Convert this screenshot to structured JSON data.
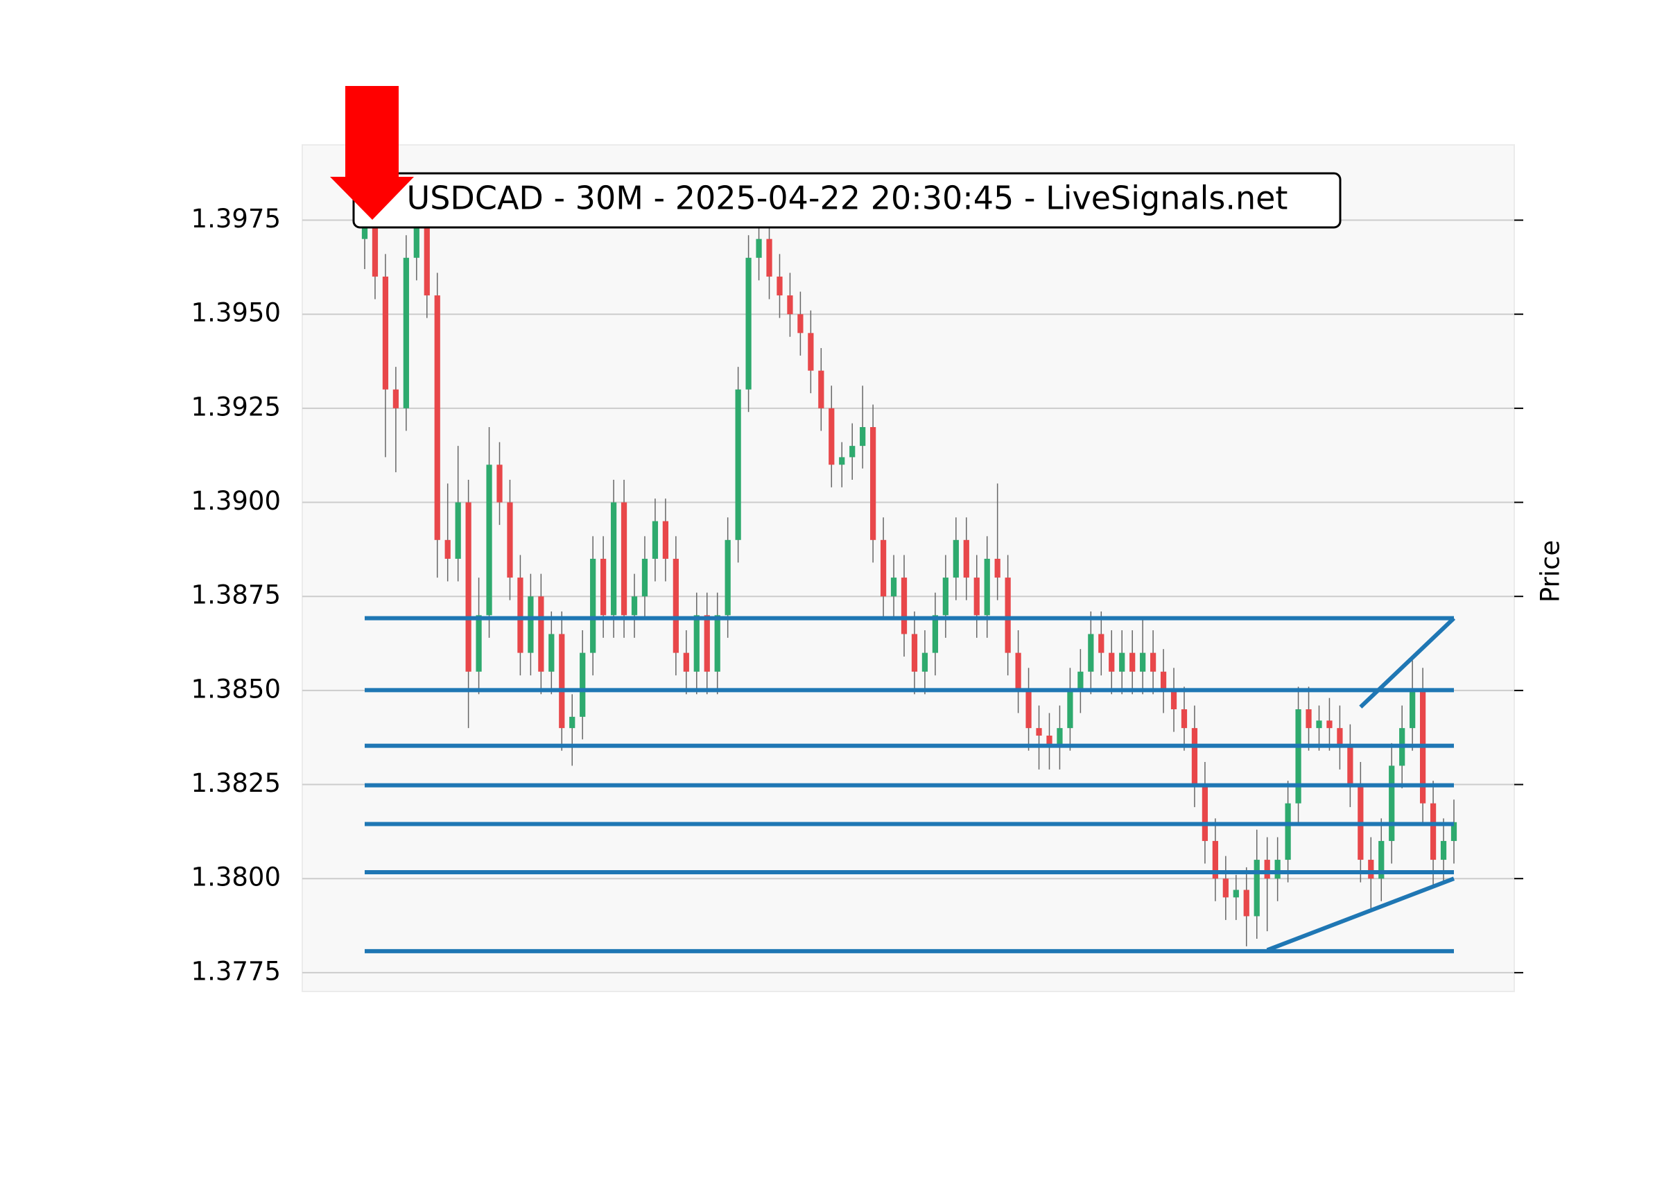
{
  "chart_data": {
    "type": "candlestick",
    "title": "USDCAD - 30M - 2025-04-22 20:30:45 - LiveSignals.net",
    "y_label": "Price",
    "up_color": "#2eaa6e",
    "down_color": "#e8474a",
    "ylim": [
      1.377,
      1.3995
    ],
    "yticks": [
      1.3775,
      {
        "value": 1.38,
        "label": "1.3800"
      },
      1.3825,
      {
        "value": 1.385,
        "label": "1.3850"
      },
      1.3875,
      {
        "value": 1.39,
        "label": "1.3900"
      },
      1.3925,
      {
        "value": 1.395,
        "label": "1.3950"
      },
      1.3975
    ],
    "grid": true,
    "open": [
      1.397,
      1.3975,
      1.396,
      1.393,
      1.3925,
      1.3965,
      1.3975,
      1.3955,
      1.389,
      1.3885,
      1.39,
      1.3855,
      1.387,
      1.391,
      1.39,
      1.388,
      1.386,
      1.3875,
      1.3855,
      1.3865,
      1.384,
      1.3843,
      1.386,
      1.3885,
      1.387,
      1.39,
      1.387,
      1.3875,
      1.3885,
      1.3895,
      1.3885,
      1.386,
      1.3855,
      1.387,
      1.3855,
      1.387,
      1.389,
      1.393,
      1.3965,
      1.397,
      1.396,
      1.3955,
      1.395,
      1.3945,
      1.3935,
      1.3925,
      1.391,
      1.3912,
      1.3915,
      1.392,
      1.389,
      1.3875,
      1.388,
      1.3865,
      1.3855,
      1.386,
      1.387,
      1.388,
      1.389,
      1.388,
      1.387,
      1.3885,
      1.388,
      1.386,
      1.385,
      1.384,
      1.3838,
      1.3835,
      1.384,
      1.385,
      1.3855,
      1.3865,
      1.386,
      1.3855,
      1.386,
      1.3855,
      1.386,
      1.3855,
      1.385,
      1.3845,
      1.384,
      1.3825,
      1.381,
      1.38,
      1.3795,
      1.3797,
      1.379,
      1.3805,
      1.38,
      1.3805,
      1.382,
      1.3845,
      1.384,
      1.3842,
      1.384,
      1.3835,
      1.3825,
      1.3805,
      1.38,
      1.381,
      1.383,
      1.384,
      1.385,
      1.382,
      1.3805,
      1.381
    ],
    "high": [
      1.398,
      1.3981,
      1.3966,
      1.3936,
      1.3971,
      1.3982,
      1.3981,
      1.3961,
      1.3905,
      1.3915,
      1.3906,
      1.388,
      1.392,
      1.3916,
      1.3906,
      1.3886,
      1.3881,
      1.3881,
      1.3871,
      1.3871,
      1.3849,
      1.3866,
      1.3891,
      1.3891,
      1.3906,
      1.3906,
      1.3881,
      1.3891,
      1.3901,
      1.3901,
      1.3891,
      1.3866,
      1.3876,
      1.3876,
      1.3876,
      1.3896,
      1.3936,
      1.3971,
      1.3976,
      1.3976,
      1.3966,
      1.3961,
      1.3956,
      1.3951,
      1.3941,
      1.3931,
      1.3916,
      1.3921,
      1.3931,
      1.3926,
      1.3896,
      1.3886,
      1.3886,
      1.3871,
      1.3866,
      1.3876,
      1.3886,
      1.3896,
      1.3896,
      1.3886,
      1.3891,
      1.3905,
      1.3886,
      1.3866,
      1.3856,
      1.3846,
      1.3844,
      1.3846,
      1.3856,
      1.3861,
      1.3871,
      1.3871,
      1.3866,
      1.3866,
      1.3866,
      1.3869,
      1.3866,
      1.3861,
      1.3856,
      1.3851,
      1.3846,
      1.3831,
      1.3816,
      1.3806,
      1.3801,
      1.3803,
      1.3813,
      1.3811,
      1.3811,
      1.3826,
      1.3851,
      1.3851,
      1.3846,
      1.3848,
      1.3846,
      1.3841,
      1.3831,
      1.3811,
      1.3816,
      1.3836,
      1.3846,
      1.3858,
      1.3856,
      1.3826,
      1.3816,
      1.3821
    ],
    "low": [
      1.3962,
      1.3954,
      1.3912,
      1.3908,
      1.3919,
      1.3959,
      1.3949,
      1.388,
      1.3879,
      1.3879,
      1.384,
      1.3849,
      1.3864,
      1.3894,
      1.3874,
      1.3854,
      1.3854,
      1.3849,
      1.3849,
      1.3834,
      1.383,
      1.3837,
      1.3854,
      1.3864,
      1.3864,
      1.3864,
      1.3864,
      1.3869,
      1.3879,
      1.3879,
      1.3854,
      1.3849,
      1.3849,
      1.3849,
      1.3849,
      1.3864,
      1.3884,
      1.3924,
      1.3959,
      1.3954,
      1.3949,
      1.3944,
      1.3939,
      1.3929,
      1.3919,
      1.3904,
      1.3904,
      1.3906,
      1.3909,
      1.3884,
      1.3869,
      1.3869,
      1.3859,
      1.3849,
      1.3849,
      1.3854,
      1.3864,
      1.3874,
      1.3874,
      1.3864,
      1.3864,
      1.3874,
      1.3854,
      1.3844,
      1.3834,
      1.3829,
      1.3829,
      1.3829,
      1.3834,
      1.3844,
      1.3849,
      1.3854,
      1.3849,
      1.3849,
      1.3849,
      1.3849,
      1.3849,
      1.3844,
      1.3839,
      1.3834,
      1.3819,
      1.3804,
      1.3794,
      1.3789,
      1.3789,
      1.3782,
      1.3784,
      1.3786,
      1.3794,
      1.3799,
      1.3814,
      1.3834,
      1.3834,
      1.3834,
      1.3829,
      1.3819,
      1.3799,
      1.3792,
      1.3794,
      1.3804,
      1.3824,
      1.3834,
      1.3814,
      1.3798,
      1.3799,
      1.3804
    ],
    "close": [
      1.3975,
      1.396,
      1.393,
      1.3925,
      1.3965,
      1.3975,
      1.3955,
      1.389,
      1.3885,
      1.39,
      1.3855,
      1.387,
      1.391,
      1.39,
      1.388,
      1.386,
      1.3875,
      1.3855,
      1.3865,
      1.384,
      1.3843,
      1.386,
      1.3885,
      1.387,
      1.39,
      1.387,
      1.3875,
      1.3885,
      1.3895,
      1.3885,
      1.386,
      1.3855,
      1.387,
      1.3855,
      1.387,
      1.389,
      1.393,
      1.3965,
      1.397,
      1.396,
      1.3955,
      1.395,
      1.3945,
      1.3935,
      1.3925,
      1.391,
      1.3912,
      1.3915,
      1.392,
      1.389,
      1.3875,
      1.388,
      1.3865,
      1.3855,
      1.386,
      1.387,
      1.388,
      1.389,
      1.388,
      1.387,
      1.3885,
      1.388,
      1.386,
      1.385,
      1.384,
      1.3838,
      1.3835,
      1.384,
      1.385,
      1.3855,
      1.3865,
      1.386,
      1.3855,
      1.386,
      1.3855,
      1.386,
      1.3855,
      1.385,
      1.3845,
      1.384,
      1.3825,
      1.381,
      1.38,
      1.3795,
      1.3797,
      1.379,
      1.3805,
      1.38,
      1.3805,
      1.382,
      1.3845,
      1.384,
      1.3842,
      1.384,
      1.3835,
      1.3825,
      1.3805,
      1.38,
      1.381,
      1.383,
      1.384,
      1.385,
      1.382,
      1.3805,
      1.381,
      1.3815
    ],
    "levels": {
      "color": "#1f77b4",
      "values": [
        1.38692,
        1.38501,
        1.38353,
        1.38248,
        1.38145,
        1.38017,
        1.37807
      ]
    },
    "trendlines": [
      {
        "from": 96,
        "to": 105,
        "values": [
          1.38456,
          1.38692
        ]
      },
      {
        "from": 87,
        "to": 105,
        "values": [
          1.3781,
          1.38
        ]
      }
    ]
  }
}
